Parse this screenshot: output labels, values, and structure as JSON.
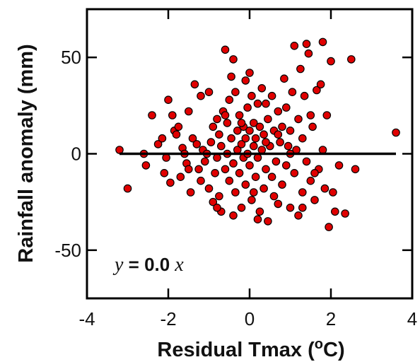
{
  "chart_data": {
    "type": "scatter",
    "xlabel_main": "Residual Tmax (",
    "xlabel_sup": "o",
    "xlabel_end": "C)",
    "ylabel": "Rainfall anomaly (mm)",
    "xlim": [
      -4,
      4
    ],
    "ylim": [
      -75,
      75
    ],
    "xticks": [
      -4,
      -2,
      0,
      2,
      4
    ],
    "yticks": [
      -50,
      0,
      50
    ],
    "xtick_labels": [
      "-4",
      "-2",
      "0",
      "2",
      "4"
    ],
    "ytick_labels": [
      "-50",
      "0",
      "50"
    ],
    "annotation": {
      "var_y": "y",
      "op": " = ",
      "coef": "0.0",
      "var_x": " x"
    },
    "fit_line": {
      "slope": 0.0,
      "intercept": 0.0,
      "x_range": [
        -3.2,
        3.6
      ]
    },
    "marker_color": "#e00000",
    "points": [
      [
        -3.2,
        2
      ],
      [
        -3.0,
        -18
      ],
      [
        -2.6,
        0
      ],
      [
        -2.55,
        -6
      ],
      [
        -2.4,
        20
      ],
      [
        -2.25,
        5
      ],
      [
        -2.15,
        8
      ],
      [
        -2.05,
        -2
      ],
      [
        -2.0,
        28
      ],
      [
        -1.95,
        -15
      ],
      [
        -1.9,
        20
      ],
      [
        -1.85,
        12
      ],
      [
        -1.8,
        10
      ],
      [
        -1.75,
        14
      ],
      [
        -1.7,
        -12
      ],
      [
        -1.65,
        3
      ],
      [
        -1.6,
        0
      ],
      [
        -1.55,
        -5
      ],
      [
        -1.5,
        22
      ],
      [
        -1.45,
        -20
      ],
      [
        -1.4,
        8
      ],
      [
        -1.35,
        36
      ],
      [
        -1.3,
        5
      ],
      [
        -1.25,
        -8
      ],
      [
        -1.2,
        -14
      ],
      [
        -1.15,
        2
      ],
      [
        -1.1,
        -4
      ],
      [
        -1.05,
        0
      ],
      [
        -1.0,
        32
      ],
      [
        -1.0,
        -18
      ],
      [
        -0.95,
        6
      ],
      [
        -0.9,
        -25
      ],
      [
        -0.9,
        14
      ],
      [
        -0.85,
        -10
      ],
      [
        -0.8,
        18
      ],
      [
        -0.8,
        -2
      ],
      [
        -0.75,
        10
      ],
      [
        -0.75,
        -22
      ],
      [
        -0.7,
        4
      ],
      [
        -0.7,
        -30
      ],
      [
        -0.65,
        22
      ],
      [
        -0.6,
        54
      ],
      [
        -0.6,
        -8
      ],
      [
        -0.55,
        16
      ],
      [
        -0.55,
        0
      ],
      [
        -0.5,
        28
      ],
      [
        -0.5,
        -14
      ],
      [
        -0.45,
        40
      ],
      [
        -0.45,
        8
      ],
      [
        -0.4,
        -5
      ],
      [
        -0.4,
        49
      ],
      [
        -0.35,
        32
      ],
      [
        -0.35,
        -20
      ],
      [
        -0.3,
        12
      ],
      [
        -0.3,
        2
      ],
      [
        -0.25,
        -10
      ],
      [
        -0.25,
        20
      ],
      [
        -0.2,
        5
      ],
      [
        -0.2,
        -28
      ],
      [
        -0.15,
        14
      ],
      [
        -0.15,
        -2
      ],
      [
        -0.1,
        38
      ],
      [
        -0.1,
        8
      ],
      [
        -0.1,
        -16
      ],
      [
        -0.05,
        24
      ],
      [
        -0.05,
        0
      ],
      [
        0.0,
        42
      ],
      [
        0.0,
        12
      ],
      [
        0.0,
        -6
      ],
      [
        0.05,
        30
      ],
      [
        0.05,
        -24
      ],
      [
        0.1,
        4
      ],
      [
        0.1,
        16
      ],
      [
        0.15,
        -12
      ],
      [
        0.15,
        8
      ],
      [
        0.2,
        26
      ],
      [
        0.2,
        -2
      ],
      [
        0.25,
        -30
      ],
      [
        0.25,
        14
      ],
      [
        0.3,
        34
      ],
      [
        0.3,
        2
      ],
      [
        0.35,
        -18
      ],
      [
        0.35,
        10
      ],
      [
        0.4,
        26
      ],
      [
        0.4,
        -8
      ],
      [
        0.45,
        -35
      ],
      [
        0.45,
        18
      ],
      [
        0.5,
        4
      ],
      [
        0.55,
        30
      ],
      [
        0.55,
        -12
      ],
      [
        0.6,
        12
      ],
      [
        0.65,
        -4
      ],
      [
        0.7,
        22
      ],
      [
        0.7,
        -26
      ],
      [
        0.75,
        6
      ],
      [
        0.8,
        14
      ],
      [
        0.8,
        -16
      ],
      [
        0.85,
        39
      ],
      [
        0.9,
        -6
      ],
      [
        0.9,
        24
      ],
      [
        0.95,
        4
      ],
      [
        1.0,
        -28
      ],
      [
        1.0,
        12
      ],
      [
        1.05,
        32
      ],
      [
        1.1,
        -10
      ],
      [
        1.1,
        56
      ],
      [
        1.15,
        2
      ],
      [
        1.2,
        18
      ],
      [
        1.2,
        -32
      ],
      [
        1.25,
        44
      ],
      [
        1.3,
        -20
      ],
      [
        1.3,
        8
      ],
      [
        1.35,
        30
      ],
      [
        1.4,
        -4
      ],
      [
        1.4,
        57
      ],
      [
        1.45,
        52
      ],
      [
        1.5,
        -14
      ],
      [
        1.5,
        20
      ],
      [
        1.55,
        14
      ],
      [
        1.6,
        -24
      ],
      [
        1.65,
        33
      ],
      [
        1.7,
        -8
      ],
      [
        1.75,
        36
      ],
      [
        1.8,
        2
      ],
      [
        1.8,
        58
      ],
      [
        1.85,
        -18
      ],
      [
        1.9,
        20
      ],
      [
        1.95,
        -38
      ],
      [
        2.0,
        48
      ],
      [
        2.05,
        -20
      ],
      [
        2.1,
        -30
      ],
      [
        2.2,
        -6
      ],
      [
        2.35,
        -31
      ],
      [
        2.5,
        49
      ],
      [
        2.6,
        -8
      ],
      [
        3.6,
        11
      ],
      [
        -0.6,
        20
      ],
      [
        -0.4,
        -32
      ],
      [
        0.2,
        -34
      ],
      [
        0.6,
        -22
      ],
      [
        1.0,
        0
      ],
      [
        -1.2,
        30
      ],
      [
        0.4,
        6
      ],
      [
        -0.2,
        16
      ],
      [
        0.1,
        -20
      ],
      [
        0.7,
        10
      ],
      [
        1.3,
        -28
      ],
      [
        1.6,
        -10
      ],
      [
        -0.8,
        -28
      ],
      [
        -1.5,
        -8
      ],
      [
        -2.1,
        -10
      ]
    ]
  }
}
